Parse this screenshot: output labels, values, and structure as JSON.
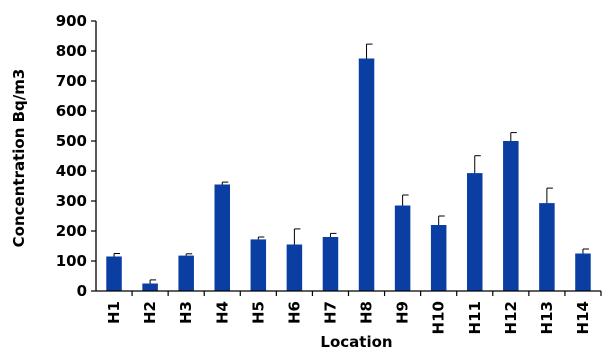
{
  "chart_data": {
    "type": "bar",
    "categories": [
      "H1",
      "H2",
      "H3",
      "H4",
      "H5",
      "H6",
      "H7",
      "H8",
      "H9",
      "H10",
      "H11",
      "H12",
      "H13",
      "H14"
    ],
    "values": [
      115,
      25,
      118,
      355,
      172,
      155,
      180,
      775,
      285,
      220,
      393,
      500,
      293,
      125
    ],
    "error_upper": [
      10,
      12,
      6,
      8,
      8,
      52,
      12,
      48,
      35,
      30,
      58,
      28,
      50,
      15
    ],
    "xlabel": "Location",
    "ylabel": "Concentration Bq/m3",
    "ylim": [
      0,
      900
    ],
    "yticks": [
      0,
      100,
      200,
      300,
      400,
      500,
      600,
      700,
      800,
      900
    ],
    "bar_color": "#0a3ea3",
    "grid": false,
    "legend": "none"
  }
}
